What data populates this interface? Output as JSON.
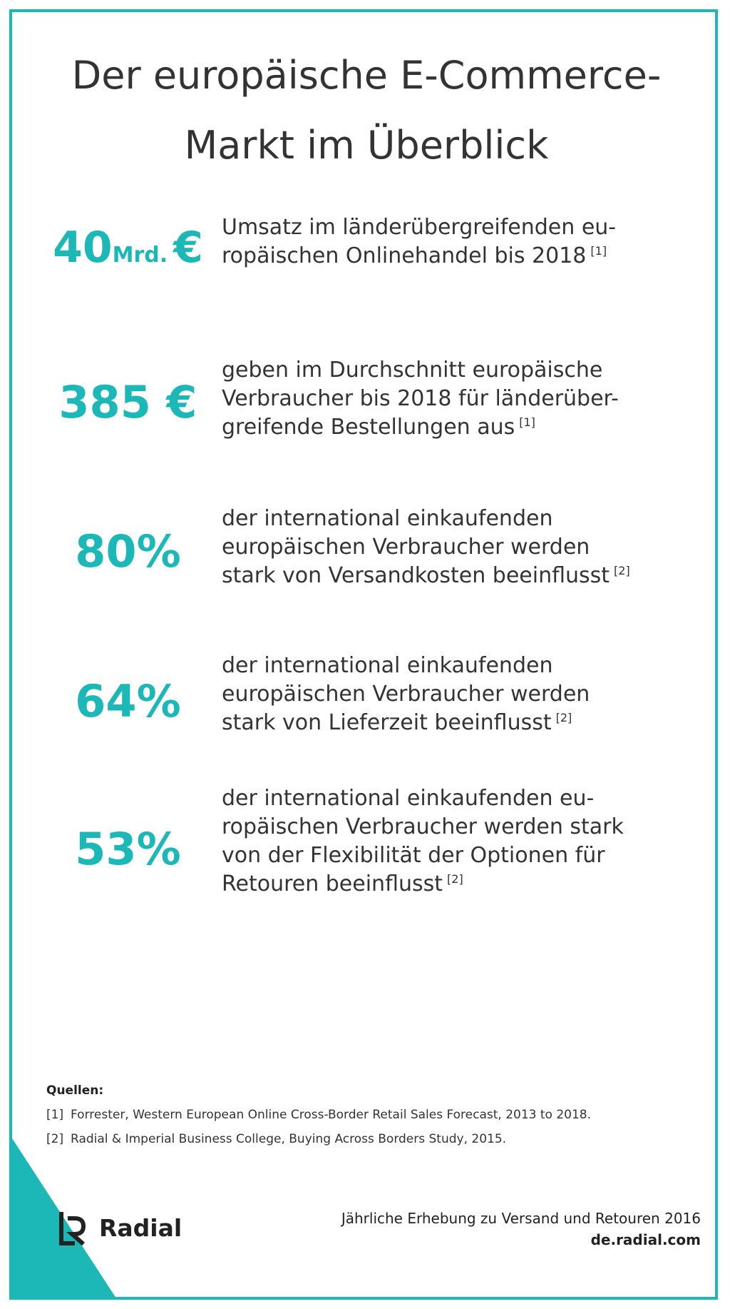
{
  "title": {
    "line1": "Der europäische E-Commerce-",
    "line2": "Markt im Überblick"
  },
  "stats": [
    {
      "number": "40",
      "unit": "Mrd.",
      "currency": "€",
      "lines": [
        "Umsatz im länderübergreifenden eu-",
        "ropäischen Onlinehandel bis 2018"
      ],
      "ref": "[1]"
    },
    {
      "value": "385 €",
      "lines": [
        "geben im Durchschnitt europäische",
        "Verbraucher bis 2018 für länderüber-",
        "greifende Bestellungen aus"
      ],
      "ref": "[1]"
    },
    {
      "value": "80%",
      "lines": [
        "der international einkaufenden",
        "europäischen Verbraucher werden",
        "stark von Versandkosten beeinflusst"
      ],
      "ref": "[2]"
    },
    {
      "value": "64%",
      "lines": [
        "der international einkaufenden",
        "europäischen Verbraucher werden",
        "stark von Lieferzeit beeinflusst"
      ],
      "ref": "[2]"
    },
    {
      "value": "53%",
      "lines": [
        "der international einkaufenden eu-",
        "ropäischen Verbraucher werden stark",
        "von der Flexibilität der Optionen für",
        "Retouren beeinflusst"
      ],
      "ref": "[2]"
    }
  ],
  "sources": {
    "title": "Quellen:",
    "items": [
      {
        "num": "[1]",
        "text": "Forrester, Western European Online Cross-Border Retail Sales Forecast, 2013 to 2018."
      },
      {
        "num": "[2]",
        "text": "Radial & Imperial Business College, Buying Across Borders Study, 2015."
      }
    ]
  },
  "brand": {
    "name": "Radial",
    "icon": "radial-logo-icon"
  },
  "footer": {
    "line1": "Jährliche Erhebung zu Versand und Retouren 2016",
    "url": "de.radial.com"
  },
  "colors": {
    "accent": "#1cb8b8",
    "text": "#333333"
  }
}
